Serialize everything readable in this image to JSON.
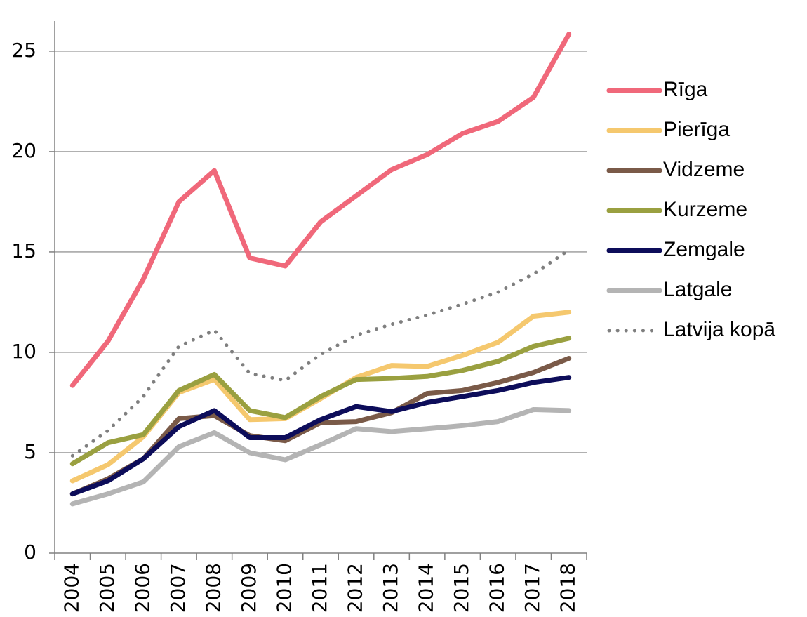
{
  "chart_data": {
    "type": "line",
    "categories": [
      "2004",
      "2005",
      "2006",
      "2007",
      "2008",
      "2009",
      "2010",
      "2011",
      "2012",
      "2013",
      "2014",
      "2015",
      "2016",
      "2017",
      "2018"
    ],
    "ylim": [
      0,
      26.5
    ],
    "yticks": [
      0,
      5,
      10,
      15,
      20,
      25
    ],
    "grid": true,
    "legend": "right",
    "series": [
      {
        "name": "Rīga",
        "color": "#f0687a",
        "values": [
          8.35,
          10.55,
          13.65,
          17.5,
          19.05,
          14.7,
          14.3,
          16.5,
          17.8,
          19.1,
          19.85,
          20.9,
          21.5,
          22.7,
          25.85
        ]
      },
      {
        "name": "Pierīga",
        "color": "#f5c86e",
        "values": [
          3.6,
          4.4,
          5.8,
          8.0,
          8.65,
          6.65,
          6.7,
          7.7,
          8.75,
          9.35,
          9.3,
          9.85,
          10.5,
          11.8,
          12.0
        ]
      },
      {
        "name": "Vidzeme",
        "color": "#7a5a48",
        "values": [
          2.95,
          3.7,
          4.7,
          6.7,
          6.85,
          5.85,
          5.6,
          6.5,
          6.55,
          7.0,
          7.95,
          8.1,
          8.5,
          9.0,
          9.7
        ]
      },
      {
        "name": "Kurzeme",
        "color": "#9aa040",
        "values": [
          4.45,
          5.5,
          5.9,
          8.1,
          8.9,
          7.1,
          6.75,
          7.8,
          8.65,
          8.7,
          8.8,
          9.1,
          9.55,
          10.3,
          10.7
        ]
      },
      {
        "name": "Zemgale",
        "color": "#0d0d5a",
        "values": [
          2.95,
          3.6,
          4.7,
          6.3,
          7.1,
          5.75,
          5.75,
          6.65,
          7.3,
          7.05,
          7.5,
          7.8,
          8.1,
          8.5,
          8.75
        ]
      },
      {
        "name": "Latgale",
        "color": "#b4b4b4",
        "values": [
          2.45,
          2.95,
          3.55,
          5.3,
          6.0,
          5.0,
          4.65,
          5.4,
          6.2,
          6.05,
          6.2,
          6.35,
          6.55,
          7.15,
          7.1
        ]
      },
      {
        "name": "Latvija kopā",
        "color": "#7f7f7f",
        "style": "dotted",
        "values": [
          4.85,
          6.1,
          7.8,
          10.3,
          11.1,
          8.95,
          8.6,
          9.9,
          10.85,
          11.4,
          11.85,
          12.4,
          13.0,
          13.9,
          15.1
        ]
      }
    ]
  }
}
